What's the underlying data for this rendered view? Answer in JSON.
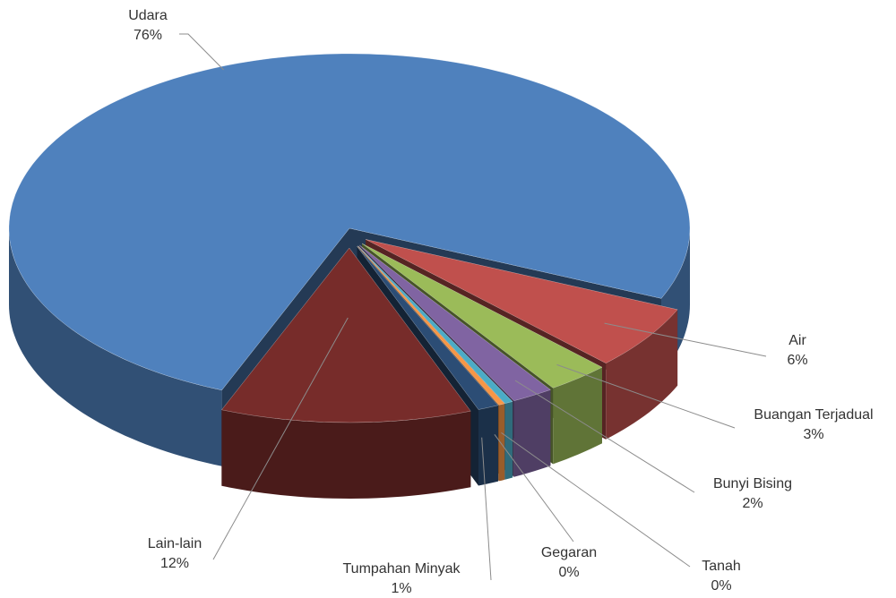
{
  "chart_data": {
    "type": "pie3d",
    "categories": [
      "Udara",
      "Air",
      "Buangan Terjadual",
      "Bunyi Bising",
      "Tanah",
      "Gegaran",
      "Tumpahan Minyak",
      "Lain-lain"
    ],
    "values": [
      76,
      6,
      3,
      2,
      0.4,
      0.3,
      1,
      12
    ],
    "value_labels": [
      "76%",
      "6%",
      "3%",
      "2%",
      "0%",
      "0%",
      "1%",
      "12%"
    ],
    "colors": [
      "#4f81bd",
      "#c0504d",
      "#9bbb59",
      "#8064a2",
      "#4bacc6",
      "#f79646",
      "#2c4d75",
      "#772c2a"
    ]
  }
}
